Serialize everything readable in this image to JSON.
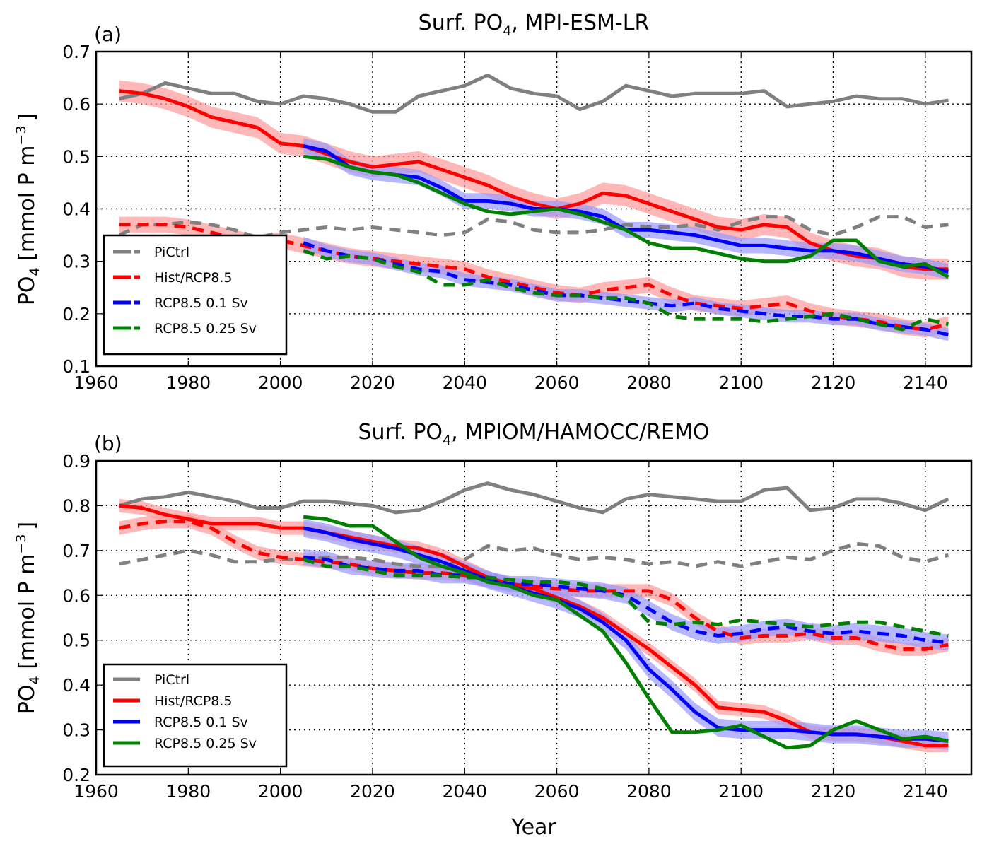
{
  "chart_data": [
    {
      "type": "line",
      "panel_label": "(a)",
      "title_prefix": "Surf. PO",
      "title_sub": "4",
      "title_suffix": ", MPI-ESM-LR",
      "xlabel": "",
      "ylabel_prefix": "PO",
      "ylabel_sub": "4",
      "ylabel_suffix": " [mmol P m",
      "ylabel_sup": "−3",
      "ylabel_end": "]",
      "xlim": [
        1960,
        2150
      ],
      "ylim": [
        0.1,
        0.7
      ],
      "xticks": [
        1960,
        1980,
        2000,
        2020,
        2040,
        2060,
        2080,
        2100,
        2120,
        2140
      ],
      "yticks": [
        0.1,
        0.2,
        0.3,
        0.4,
        0.5,
        0.6,
        0.7
      ],
      "grid": true,
      "legend_position": "lower-left",
      "legend": [
        "PiCtrl",
        "Hist/RCP8.5",
        "RCP8.5 0.1 Sv",
        "RCP8.5 0.25 Sv"
      ],
      "series": [
        {
          "name": "PiCtrl",
          "style": "solid",
          "color": "#808080",
          "x_start": 1965,
          "x_step": 5,
          "values": [
            0.61,
            0.62,
            0.64,
            0.63,
            0.62,
            0.62,
            0.605,
            0.6,
            0.615,
            0.61,
            0.6,
            0.585,
            0.585,
            0.615,
            0.625,
            0.635,
            0.655,
            0.63,
            0.62,
            0.615,
            0.59,
            0.605,
            0.635,
            0.625,
            0.615,
            0.62,
            0.62,
            0.62,
            0.625,
            0.595,
            0.6,
            0.605,
            0.615,
            0.61,
            0.61,
            0.6,
            0.607
          ]
        },
        {
          "name": "PiCtrl",
          "style": "dashed",
          "color": "#808080",
          "x_start": 1965,
          "x_step": 5,
          "values": [
            0.35,
            0.37,
            0.37,
            0.375,
            0.37,
            0.36,
            0.345,
            0.355,
            0.36,
            0.365,
            0.36,
            0.365,
            0.36,
            0.355,
            0.35,
            0.355,
            0.38,
            0.375,
            0.36,
            0.355,
            0.355,
            0.36,
            0.37,
            0.365,
            0.365,
            0.37,
            0.36,
            0.375,
            0.385,
            0.385,
            0.36,
            0.35,
            0.365,
            0.385,
            0.385,
            0.365,
            0.37
          ]
        },
        {
          "name": "Hist/RCP8.5",
          "style": "solid",
          "color": "#ff0000",
          "x_start": 1965,
          "x_step": 5,
          "band": 0.02,
          "values": [
            0.625,
            0.62,
            0.61,
            0.595,
            0.575,
            0.565,
            0.555,
            0.525,
            0.52,
            0.505,
            0.49,
            0.48,
            0.485,
            0.49,
            0.475,
            0.46,
            0.445,
            0.425,
            0.41,
            0.4,
            0.41,
            0.43,
            0.425,
            0.41,
            0.395,
            0.38,
            0.365,
            0.36,
            0.37,
            0.365,
            0.335,
            0.32,
            0.31,
            0.305,
            0.29,
            0.285,
            0.285
          ]
        },
        {
          "name": "Hist/RCP8.5",
          "style": "dashed",
          "color": "#ff0000",
          "x_start": 1965,
          "x_step": 5,
          "band": 0.015,
          "values": [
            0.37,
            0.37,
            0.37,
            0.365,
            0.355,
            0.345,
            0.335,
            0.34,
            0.33,
            0.32,
            0.31,
            0.305,
            0.3,
            0.295,
            0.29,
            0.285,
            0.27,
            0.26,
            0.25,
            0.24,
            0.235,
            0.245,
            0.25,
            0.255,
            0.235,
            0.22,
            0.215,
            0.21,
            0.215,
            0.22,
            0.205,
            0.195,
            0.19,
            0.185,
            0.175,
            0.17,
            0.18
          ]
        },
        {
          "name": "RCP8.5 0.1 Sv",
          "style": "solid",
          "color": "#0000ff",
          "x_start": 2005,
          "x_step": 5,
          "band": 0.015,
          "values": [
            0.52,
            0.51,
            0.48,
            0.47,
            0.465,
            0.46,
            0.44,
            0.415,
            0.415,
            0.41,
            0.4,
            0.4,
            0.395,
            0.385,
            0.36,
            0.36,
            0.355,
            0.35,
            0.34,
            0.33,
            0.33,
            0.325,
            0.32,
            0.32,
            0.315,
            0.305,
            0.295,
            0.29,
            0.28
          ]
        },
        {
          "name": "RCP8.5 0.1 Sv",
          "style": "dashed",
          "color": "#0000ff",
          "x_start": 2005,
          "x_step": 5,
          "band": 0.012,
          "values": [
            0.335,
            0.32,
            0.31,
            0.305,
            0.295,
            0.285,
            0.28,
            0.265,
            0.26,
            0.255,
            0.245,
            0.235,
            0.235,
            0.23,
            0.225,
            0.22,
            0.215,
            0.22,
            0.21,
            0.205,
            0.2,
            0.195,
            0.195,
            0.19,
            0.19,
            0.18,
            0.175,
            0.17,
            0.16
          ]
        },
        {
          "name": "RCP8.5 0.25 Sv",
          "style": "solid",
          "color": "#008000",
          "x_start": 2005,
          "x_step": 5,
          "values": [
            0.5,
            0.495,
            0.48,
            0.47,
            0.465,
            0.45,
            0.43,
            0.41,
            0.395,
            0.39,
            0.395,
            0.4,
            0.39,
            0.375,
            0.36,
            0.335,
            0.325,
            0.325,
            0.315,
            0.305,
            0.3,
            0.3,
            0.31,
            0.34,
            0.34,
            0.3,
            0.29,
            0.295,
            0.27
          ]
        },
        {
          "name": "RCP8.5 0.25 Sv",
          "style": "dashed",
          "color": "#008000",
          "x_start": 2005,
          "x_step": 5,
          "values": [
            0.32,
            0.305,
            0.31,
            0.305,
            0.29,
            0.28,
            0.255,
            0.255,
            0.265,
            0.25,
            0.24,
            0.235,
            0.235,
            0.23,
            0.23,
            0.22,
            0.195,
            0.19,
            0.19,
            0.19,
            0.185,
            0.19,
            0.195,
            0.2,
            0.19,
            0.18,
            0.17,
            0.19,
            0.18
          ]
        }
      ]
    },
    {
      "type": "line",
      "panel_label": "(b)",
      "title_prefix": "Surf. PO",
      "title_sub": "4",
      "title_suffix": ", MPIOM/HAMOCC/REMO",
      "xlabel": "Year",
      "ylabel_prefix": "PO",
      "ylabel_sub": "4",
      "ylabel_suffix": " [mmol P m",
      "ylabel_sup": "−3",
      "ylabel_end": "]",
      "xlim": [
        1960,
        2150
      ],
      "ylim": [
        0.2,
        0.9
      ],
      "xticks": [
        1960,
        1980,
        2000,
        2020,
        2040,
        2060,
        2080,
        2100,
        2120,
        2140
      ],
      "yticks": [
        0.2,
        0.3,
        0.4,
        0.5,
        0.6,
        0.7,
        0.8,
        0.9
      ],
      "grid": true,
      "legend_position": "lower-left",
      "legend": [
        "PiCtrl",
        "Hist/RCP8.5",
        "RCP8.5 0.1 Sv",
        "RCP8.5 0.25 Sv"
      ],
      "series": [
        {
          "name": "PiCtrl",
          "style": "solid",
          "color": "#808080",
          "x_start": 1965,
          "x_step": 5,
          "values": [
            0.8,
            0.815,
            0.82,
            0.83,
            0.82,
            0.81,
            0.795,
            0.795,
            0.81,
            0.81,
            0.805,
            0.8,
            0.785,
            0.79,
            0.81,
            0.835,
            0.85,
            0.835,
            0.825,
            0.81,
            0.795,
            0.785,
            0.815,
            0.825,
            0.82,
            0.815,
            0.81,
            0.81,
            0.835,
            0.84,
            0.79,
            0.795,
            0.815,
            0.815,
            0.805,
            0.79,
            0.815
          ]
        },
        {
          "name": "PiCtrl",
          "style": "dashed",
          "color": "#808080",
          "x_start": 1965,
          "x_step": 5,
          "values": [
            0.67,
            0.68,
            0.69,
            0.7,
            0.69,
            0.675,
            0.675,
            0.68,
            0.68,
            0.685,
            0.685,
            0.68,
            0.67,
            0.665,
            0.665,
            0.68,
            0.71,
            0.7,
            0.705,
            0.69,
            0.68,
            0.685,
            0.68,
            0.67,
            0.675,
            0.665,
            0.675,
            0.665,
            0.675,
            0.685,
            0.68,
            0.7,
            0.715,
            0.71,
            0.685,
            0.675,
            0.69
          ]
        },
        {
          "name": "Hist/RCP8.5",
          "style": "solid",
          "color": "#ff0000",
          "x_start": 1965,
          "x_step": 5,
          "band": 0.015,
          "values": [
            0.8,
            0.795,
            0.78,
            0.77,
            0.76,
            0.76,
            0.76,
            0.75,
            0.75,
            0.74,
            0.73,
            0.72,
            0.71,
            0.705,
            0.69,
            0.665,
            0.64,
            0.625,
            0.615,
            0.595,
            0.575,
            0.55,
            0.515,
            0.48,
            0.44,
            0.4,
            0.35,
            0.345,
            0.34,
            0.32,
            0.295,
            0.29,
            0.29,
            0.285,
            0.275,
            0.265,
            0.265
          ]
        },
        {
          "name": "Hist/RCP8.5",
          "style": "dashed",
          "color": "#ff0000",
          "x_start": 1965,
          "x_step": 5,
          "band": 0.015,
          "values": [
            0.75,
            0.76,
            0.765,
            0.765,
            0.75,
            0.72,
            0.695,
            0.685,
            0.68,
            0.675,
            0.67,
            0.66,
            0.655,
            0.65,
            0.65,
            0.645,
            0.635,
            0.625,
            0.62,
            0.615,
            0.61,
            0.61,
            0.61,
            0.61,
            0.59,
            0.55,
            0.52,
            0.505,
            0.51,
            0.51,
            0.515,
            0.505,
            0.505,
            0.49,
            0.48,
            0.48,
            0.49
          ]
        },
        {
          "name": "RCP8.5 0.1 Sv",
          "style": "solid",
          "color": "#0000ff",
          "x_start": 2005,
          "x_step": 5,
          "band": 0.02,
          "values": [
            0.75,
            0.74,
            0.725,
            0.715,
            0.705,
            0.69,
            0.675,
            0.655,
            0.635,
            0.62,
            0.605,
            0.59,
            0.57,
            0.54,
            0.5,
            0.435,
            0.39,
            0.34,
            0.305,
            0.3,
            0.3,
            0.3,
            0.295,
            0.29,
            0.29,
            0.285,
            0.28,
            0.28,
            0.275
          ]
        },
        {
          "name": "RCP8.5 0.1 Sv",
          "style": "dashed",
          "color": "#0000ff",
          "x_start": 2005,
          "x_step": 5,
          "band": 0.018,
          "values": [
            0.685,
            0.68,
            0.665,
            0.66,
            0.655,
            0.655,
            0.645,
            0.645,
            0.635,
            0.625,
            0.625,
            0.62,
            0.615,
            0.61,
            0.6,
            0.57,
            0.54,
            0.52,
            0.51,
            0.515,
            0.525,
            0.53,
            0.52,
            0.515,
            0.52,
            0.515,
            0.51,
            0.5,
            0.495
          ]
        },
        {
          "name": "RCP8.5 0.25 Sv",
          "style": "solid",
          "color": "#008000",
          "x_start": 2005,
          "x_step": 5,
          "values": [
            0.775,
            0.77,
            0.755,
            0.755,
            0.72,
            0.685,
            0.665,
            0.65,
            0.63,
            0.62,
            0.6,
            0.59,
            0.555,
            0.52,
            0.45,
            0.37,
            0.295,
            0.295,
            0.3,
            0.31,
            0.285,
            0.26,
            0.265,
            0.3,
            0.32,
            0.3,
            0.28,
            0.285,
            0.275
          ]
        },
        {
          "name": "RCP8.5 0.25 Sv",
          "style": "dashed",
          "color": "#008000",
          "x_start": 2005,
          "x_step": 5,
          "values": [
            0.68,
            0.665,
            0.665,
            0.655,
            0.645,
            0.645,
            0.645,
            0.64,
            0.64,
            0.635,
            0.63,
            0.63,
            0.625,
            0.615,
            0.595,
            0.54,
            0.535,
            0.54,
            0.535,
            0.545,
            0.54,
            0.535,
            0.53,
            0.535,
            0.54,
            0.54,
            0.53,
            0.52,
            0.51
          ]
        }
      ]
    }
  ]
}
